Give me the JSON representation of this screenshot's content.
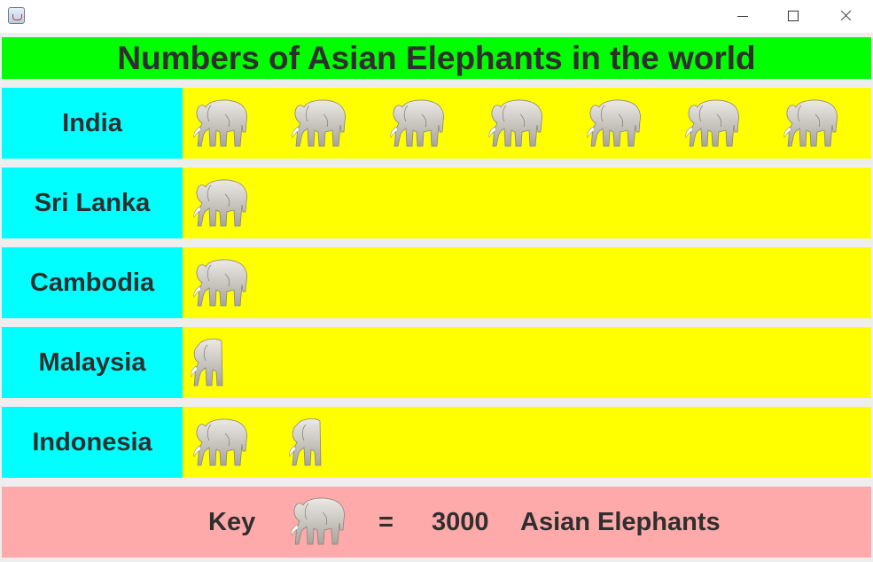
{
  "window": {
    "title": ""
  },
  "icons": {
    "app": "java-cup-icon",
    "minimize": "minimize-icon",
    "maximize": "maximize-icon",
    "close": "close-icon",
    "unit": "elephant-icon"
  },
  "colors": {
    "title_bg": "#00ff00",
    "label_bg": "#00ffff",
    "icon_row_bg": "#ffff00",
    "key_bg": "#ffaaaa",
    "text": "#2f2f2f"
  },
  "chart_data": {
    "type": "pictograph",
    "title": "Numbers of Asian Elephants in the world",
    "unit_value": 3000,
    "categories": [
      "India",
      "Sri Lanka",
      "Cambodia",
      "Malaysia",
      "Indonesia"
    ],
    "icon_counts": [
      7,
      1,
      1,
      0.5,
      1.5
    ],
    "values": [
      21000,
      3000,
      3000,
      1500,
      4500
    ],
    "key": {
      "label": "Key",
      "equals": "=",
      "value": "3000",
      "unit": "Asian Elephants"
    }
  }
}
